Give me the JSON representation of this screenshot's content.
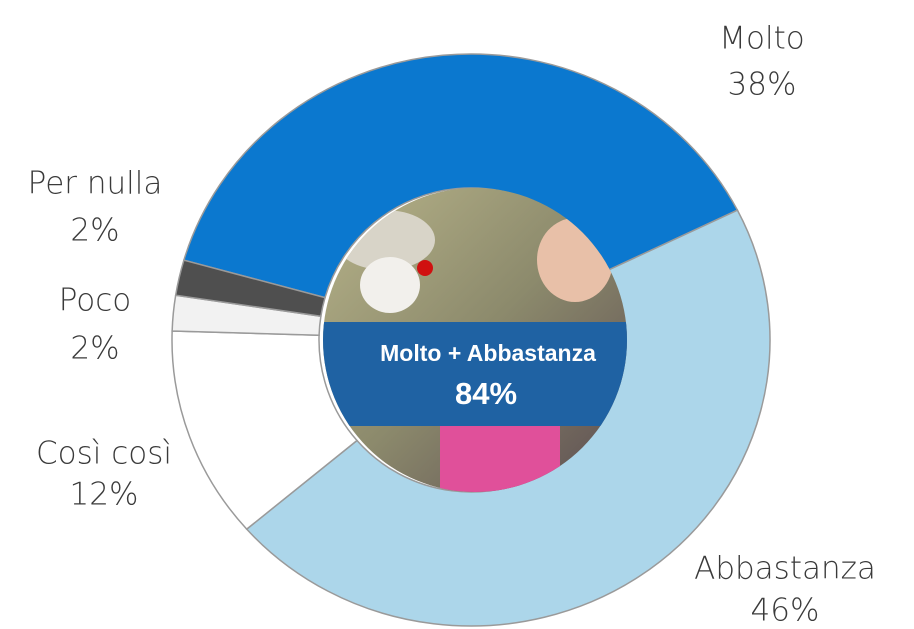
{
  "chart_data": {
    "type": "donut",
    "categories": [
      "Molto",
      "Abbastanza",
      "Così così",
      "Poco",
      "Per nulla"
    ],
    "values": [
      38,
      46,
      12,
      2,
      2
    ],
    "value_labels": [
      "38%",
      "46%",
      "12%",
      "2%",
      "2%"
    ],
    "colors": [
      "#0b78cf",
      "#acd6ea",
      "#ffffff",
      "#f2f2f2",
      "#4f4f4f"
    ],
    "center_title": "Molto + Abbastanza",
    "center_value": "84%"
  }
}
